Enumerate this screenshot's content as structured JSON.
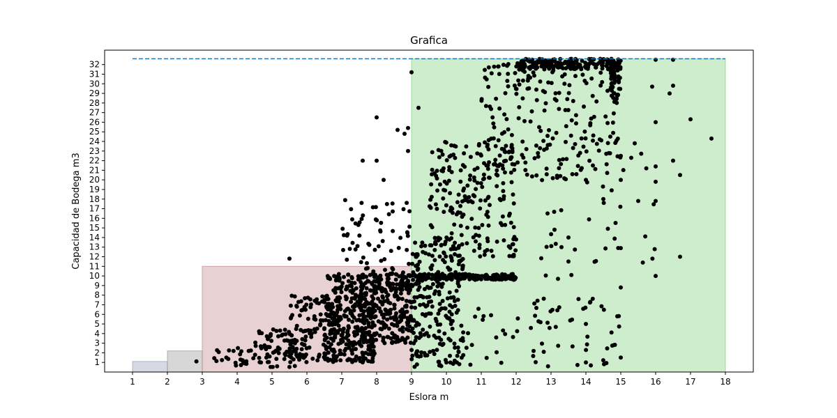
{
  "chart_data": {
    "type": "scatter",
    "title": "Grafica",
    "xlabel": "Eslora m",
    "ylabel": "Capacidad de Bodega m3",
    "xlim": [
      0.2,
      18.8
    ],
    "ylim": [
      0.0,
      33.5
    ],
    "xticks": [
      1,
      2,
      3,
      4,
      5,
      6,
      7,
      8,
      9,
      10,
      11,
      12,
      13,
      14,
      15,
      16,
      17,
      18
    ],
    "yticks": [
      1,
      2,
      3,
      4,
      5,
      6,
      7,
      8,
      9,
      10,
      11,
      12,
      13,
      14,
      15,
      16,
      17,
      18,
      19,
      20,
      21,
      22,
      23,
      24,
      25,
      26,
      27,
      28,
      29,
      30,
      31,
      32
    ],
    "grid": false,
    "reference_line": {
      "y": 32.6,
      "x_from": 1,
      "x_to": 18,
      "style": "dashed",
      "color": "#1f77b4"
    },
    "regions": [
      {
        "x_from": 1,
        "x_to": 2,
        "y_from": 0,
        "y_to": 1.1,
        "color": "#8a8fb0"
      },
      {
        "x_from": 2,
        "x_to": 3,
        "y_from": 0,
        "y_to": 2.2,
        "color": "#8c8c8c"
      },
      {
        "x_from": 3,
        "x_to": 9,
        "y_from": 0,
        "y_to": 11.0,
        "color": "#b97a80"
      },
      {
        "x_from": 9,
        "x_to": 18,
        "y_from": 0,
        "y_to": 32.6,
        "color": "#70cc70"
      }
    ],
    "point_color": "#000000",
    "clusters": [
      {
        "x": [
          2.7,
          2.9
        ],
        "y": [
          1.1,
          1.1
        ],
        "n": 1
      },
      {
        "x": [
          3.2,
          4.5
        ],
        "y": [
          0.5,
          2.5
        ],
        "n": 25
      },
      {
        "x": [
          4.5,
          6.0
        ],
        "y": [
          0.5,
          4.5
        ],
        "n": 80
      },
      {
        "x": [
          5.5,
          7.0
        ],
        "y": [
          1.0,
          8.0
        ],
        "n": 120
      },
      {
        "x": [
          6.5,
          8.0
        ],
        "y": [
          1.0,
          8.5
        ],
        "n": 260
      },
      {
        "x": [
          7.5,
          9.0
        ],
        "y": [
          3.0,
          10.5
        ],
        "n": 260
      },
      {
        "x": [
          6.5,
          9.0
        ],
        "y": [
          8.5,
          10.2
        ],
        "n": 90
      },
      {
        "x": [
          7.0,
          9.0
        ],
        "y": [
          10.5,
          18.0
        ],
        "n": 60
      },
      {
        "x": [
          9.0,
          10.5
        ],
        "y": [
          0.5,
          14.0
        ],
        "n": 220
      },
      {
        "x": [
          9.0,
          12.0
        ],
        "y": [
          9.6,
          10.2
        ],
        "n": 160
      },
      {
        "x": [
          9.5,
          12.0
        ],
        "y": [
          12.0,
          24.0
        ],
        "n": 200
      },
      {
        "x": [
          11.0,
          15.0
        ],
        "y": [
          20.0,
          32.5
        ],
        "n": 220
      },
      {
        "x": [
          12.0,
          15.0
        ],
        "y": [
          31.5,
          32.6
        ],
        "n": 180
      },
      {
        "x": [
          14.7,
          15.0
        ],
        "y": [
          28.0,
          32.0
        ],
        "n": 40
      },
      {
        "x": [
          12.5,
          16.0
        ],
        "y": [
          10.0,
          24.0
        ],
        "n": 40
      },
      {
        "x": [
          9.0,
          15.0
        ],
        "y": [
          0.5,
          8.0
        ],
        "n": 90
      }
    ],
    "points": [
      [
        5.5,
        11.8
      ],
      [
        8.0,
        26.5
      ],
      [
        8.6,
        25.2
      ],
      [
        8.8,
        24.8
      ],
      [
        8.9,
        25.4
      ],
      [
        7.6,
        22.0
      ],
      [
        8.0,
        22.0
      ],
      [
        8.2,
        20.0
      ],
      [
        8.9,
        23.0
      ],
      [
        9.0,
        31.2
      ],
      [
        9.2,
        27.5
      ],
      [
        10.0,
        1.0
      ],
      [
        10.3,
        1.0
      ],
      [
        12.5,
        2.2
      ],
      [
        14.0,
        1.0
      ],
      [
        14.0,
        5.0
      ],
      [
        14.0,
        20.0
      ],
      [
        13.2,
        9.7
      ],
      [
        14.9,
        5.8
      ],
      [
        15.0,
        8.8
      ],
      [
        15.0,
        1.5
      ],
      [
        15.0,
        12.9
      ],
      [
        15.0,
        20.0
      ],
      [
        15.0,
        22.5
      ],
      [
        15.3,
        22.3
      ],
      [
        15.4,
        23.8
      ],
      [
        16.0,
        10.0
      ],
      [
        16.0,
        17.8
      ],
      [
        16.0,
        19.8
      ],
      [
        16.0,
        21.4
      ],
      [
        16.0,
        26.0
      ],
      [
        16.0,
        32.5
      ],
      [
        16.5,
        22.0
      ],
      [
        16.4,
        29.0
      ],
      [
        16.5,
        29.8
      ],
      [
        15.9,
        29.7
      ],
      [
        16.7,
        12.0
      ],
      [
        16.7,
        20.5
      ],
      [
        17.0,
        26.3
      ],
      [
        17.6,
        24.3
      ],
      [
        16.5,
        32.5
      ],
      [
        15.5,
        17.8
      ],
      [
        14.5,
        18.0
      ],
      [
        13.5,
        14.0
      ],
      [
        12.9,
        16.5
      ],
      [
        13.3,
        13.0
      ],
      [
        13.5,
        11.5
      ],
      [
        14.2,
        21.5
      ],
      [
        14.7,
        24.5
      ]
    ]
  }
}
